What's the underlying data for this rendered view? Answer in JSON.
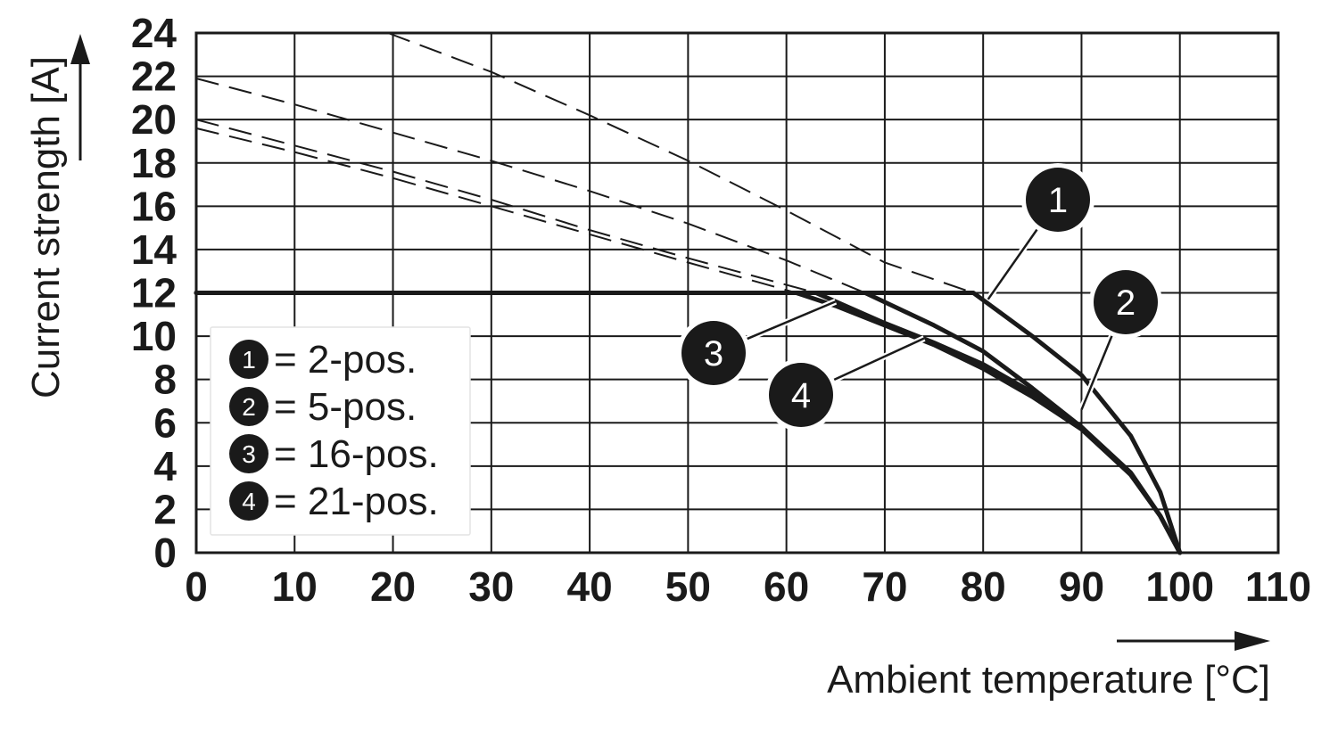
{
  "chart_data": {
    "type": "line",
    "xlabel": "Ambient temperature [°C]",
    "ylabel": "Current strength [A]",
    "xlim": [
      0,
      110
    ],
    "ylim": [
      0,
      24
    ],
    "x_ticks": [
      "0",
      "10",
      "20",
      "30",
      "40",
      "50",
      "60",
      "70",
      "80",
      "90",
      "100",
      "110"
    ],
    "y_ticks": [
      "0",
      "2",
      "4",
      "6",
      "8",
      "10",
      "12",
      "14",
      "16",
      "18",
      "20",
      "22",
      "24"
    ],
    "grid": true,
    "legend_position": "bottom-left",
    "legend": [
      {
        "marker": "1",
        "text": "= 2-pos."
      },
      {
        "marker": "2",
        "text": "= 5-pos."
      },
      {
        "marker": "3",
        "text": "= 16-pos."
      },
      {
        "marker": "4",
        "text": "= 21-pos."
      }
    ],
    "limit_current": 12,
    "series": [
      {
        "marker": "1",
        "values_solid": [
          [
            0,
            12
          ],
          [
            79,
            12
          ],
          [
            85,
            10
          ],
          [
            90,
            8.2
          ],
          [
            95,
            5.4
          ],
          [
            98,
            2.8
          ],
          [
            100,
            0
          ]
        ],
        "values_dashed": [
          [
            19.5,
            24
          ],
          [
            30,
            22.2
          ],
          [
            40,
            20.2
          ],
          [
            50,
            18.1
          ],
          [
            60,
            15.8
          ],
          [
            70,
            13.4
          ],
          [
            79,
            12
          ]
        ]
      },
      {
        "marker": "2",
        "values_solid": [
          [
            0,
            12
          ],
          [
            68,
            12
          ],
          [
            75,
            10.5
          ],
          [
            80,
            9.3
          ],
          [
            85,
            7.6
          ],
          [
            90,
            5.8
          ],
          [
            95,
            3.6
          ],
          [
            98,
            1.7
          ],
          [
            100,
            0
          ]
        ],
        "values_dashed": [
          [
            0,
            21.9
          ],
          [
            10,
            20.7
          ],
          [
            20,
            19.4
          ],
          [
            30,
            18.1
          ],
          [
            40,
            16.7
          ],
          [
            50,
            15.2
          ],
          [
            60,
            13.5
          ],
          [
            68,
            12
          ]
        ]
      },
      {
        "marker": "3",
        "values_solid": [
          [
            0,
            12
          ],
          [
            63,
            12
          ],
          [
            70,
            10.6
          ],
          [
            75,
            9.7
          ],
          [
            80,
            8.7
          ],
          [
            85,
            7.4
          ],
          [
            90,
            5.8
          ],
          [
            95,
            3.7
          ],
          [
            98,
            1.7
          ],
          [
            100,
            0
          ]
        ],
        "values_dashed": [
          [
            0,
            20
          ],
          [
            10,
            18.8
          ],
          [
            20,
            17.6
          ],
          [
            30,
            16.3
          ],
          [
            40,
            14.9
          ],
          [
            50,
            13.6
          ],
          [
            63,
            12
          ]
        ]
      },
      {
        "marker": "4",
        "values_solid": [
          [
            0,
            12
          ],
          [
            61,
            12
          ],
          [
            65,
            11.4
          ],
          [
            70,
            10.5
          ],
          [
            75,
            9.6
          ],
          [
            80,
            8.5
          ],
          [
            85,
            7.2
          ],
          [
            90,
            5.7
          ],
          [
            95,
            3.6
          ],
          [
            98,
            1.7
          ],
          [
            100,
            0
          ]
        ],
        "values_dashed": [
          [
            0,
            19.6
          ],
          [
            10,
            18.5
          ],
          [
            20,
            17.3
          ],
          [
            30,
            16.0
          ],
          [
            40,
            14.7
          ],
          [
            50,
            13.4
          ],
          [
            61,
            12
          ]
        ]
      }
    ],
    "callouts": [
      {
        "marker": "1",
        "points_to": [
          80.5,
          11.7
        ]
      },
      {
        "marker": "2",
        "points_to": [
          90,
          6.6
        ]
      },
      {
        "marker": "3",
        "points_to": [
          65,
          11.6
        ]
      },
      {
        "marker": "4",
        "points_to": [
          74,
          9.9
        ]
      }
    ]
  }
}
